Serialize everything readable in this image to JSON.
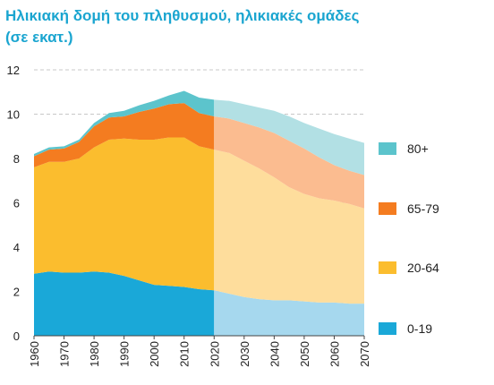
{
  "title_line1": "Ηλικιακή δομή του πληθυσμού, ηλικιακές ομάδες",
  "title_line2": "(σε εκατ.)",
  "chart_data": {
    "type": "area",
    "stacked": true,
    "x": [
      1960,
      1965,
      1970,
      1975,
      1980,
      1985,
      1990,
      1995,
      2000,
      2005,
      2010,
      2015,
      2020,
      2025,
      2030,
      2035,
      2040,
      2045,
      2050,
      2055,
      2060,
      2065,
      2070
    ],
    "projection_start": 2020,
    "series": [
      {
        "name": "0-19",
        "color": "#1aa8d8",
        "projection_color": "#a6d8ee",
        "values": [
          2.8,
          2.9,
          2.85,
          2.85,
          2.9,
          2.85,
          2.7,
          2.5,
          2.3,
          2.25,
          2.2,
          2.1,
          2.05,
          1.9,
          1.75,
          1.65,
          1.6,
          1.6,
          1.55,
          1.5,
          1.5,
          1.45,
          1.45
        ]
      },
      {
        "name": "20-64",
        "color": "#fbbd2e",
        "projection_color": "#fedd9c",
        "values": [
          4.8,
          4.95,
          5.0,
          5.15,
          5.6,
          6.0,
          6.2,
          6.35,
          6.55,
          6.7,
          6.75,
          6.45,
          6.35,
          6.35,
          6.15,
          5.9,
          5.55,
          5.1,
          4.85,
          4.7,
          4.6,
          4.5,
          4.3
        ]
      },
      {
        "name": "65-79",
        "color": "#f47c20",
        "projection_color": "#fbbc90",
        "values": [
          0.5,
          0.55,
          0.6,
          0.75,
          0.95,
          1.0,
          1.0,
          1.25,
          1.4,
          1.5,
          1.55,
          1.5,
          1.5,
          1.55,
          1.7,
          1.85,
          2.0,
          2.1,
          2.05,
          1.85,
          1.6,
          1.5,
          1.5
        ]
      },
      {
        "name": "80+",
        "color": "#5cc4cc",
        "projection_color": "#b2e0e4",
        "values": [
          0.1,
          0.1,
          0.1,
          0.1,
          0.15,
          0.2,
          0.25,
          0.3,
          0.35,
          0.4,
          0.55,
          0.7,
          0.75,
          0.8,
          0.85,
          0.9,
          1.0,
          1.1,
          1.15,
          1.3,
          1.4,
          1.45,
          1.45
        ]
      }
    ],
    "y_ticks": [
      0,
      2,
      4,
      6,
      8,
      10,
      12
    ],
    "x_ticks": [
      1960,
      1970,
      1980,
      1990,
      2000,
      2010,
      2020,
      2030,
      2040,
      2050,
      2060,
      2070
    ],
    "ylim": [
      0,
      12
    ],
    "xlim": [
      1960,
      2070
    ],
    "grid": "horizontal dashed",
    "legend": [
      "80+",
      "65-79",
      "20-64",
      "0-19"
    ],
    "legend_position": "right"
  }
}
